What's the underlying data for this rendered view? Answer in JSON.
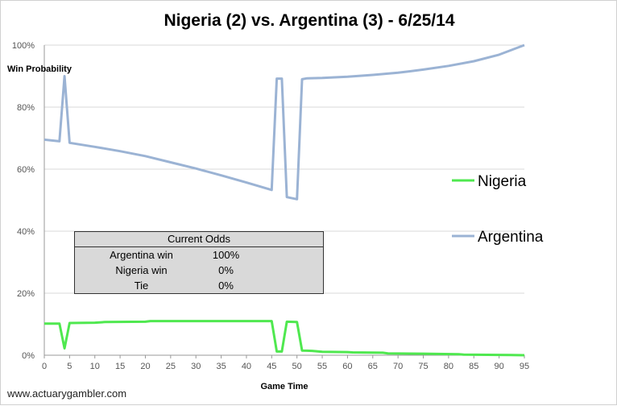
{
  "chart_data": {
    "type": "line",
    "title": "Nigeria (2) vs. Argentina (3) - 6/25/14",
    "xlabel": "Game Time",
    "ylabel": "Win Probability",
    "xlim": [
      0,
      95
    ],
    "ylim": [
      0,
      100
    ],
    "x_ticks": [
      "0",
      "5",
      "10",
      "15",
      "20",
      "25",
      "30",
      "35",
      "40",
      "45",
      "50",
      "55",
      "60",
      "65",
      "70",
      "75",
      "80",
      "85",
      "90",
      "95"
    ],
    "y_ticks": [
      "0%",
      "20%",
      "40%",
      "60%",
      "80%",
      "100%"
    ],
    "grid": true,
    "legend_position": "right",
    "series": [
      {
        "name": "Nigeria",
        "color": "#4fe84f",
        "points": [
          [
            0,
            10.2
          ],
          [
            3,
            10.2
          ],
          [
            4,
            2.2
          ],
          [
            5,
            10.4
          ],
          [
            10,
            10.5
          ],
          [
            12,
            10.7
          ],
          [
            20,
            10.8
          ],
          [
            21,
            11.0
          ],
          [
            45,
            11.0
          ],
          [
            46,
            1.2
          ],
          [
            47,
            1.2
          ],
          [
            48,
            10.8
          ],
          [
            50,
            10.7
          ],
          [
            51,
            1.5
          ],
          [
            53,
            1.4
          ],
          [
            55,
            1.1
          ],
          [
            60,
            1.0
          ],
          [
            61,
            0.9
          ],
          [
            67,
            0.8
          ],
          [
            68,
            0.6
          ],
          [
            75,
            0.5
          ],
          [
            82,
            0.3
          ],
          [
            83,
            0.2
          ],
          [
            90,
            0.1
          ],
          [
            95,
            0.0
          ]
        ]
      },
      {
        "name": "Argentina",
        "color": "#9bb3d4",
        "points": [
          [
            0,
            69.5
          ],
          [
            3,
            69.0
          ],
          [
            4,
            90.0
          ],
          [
            5,
            68.5
          ],
          [
            10,
            67.2
          ],
          [
            15,
            65.8
          ],
          [
            20,
            64.2
          ],
          [
            25,
            62.2
          ],
          [
            30,
            60.2
          ],
          [
            35,
            58.0
          ],
          [
            40,
            55.7
          ],
          [
            45,
            53.3
          ],
          [
            46,
            89.2
          ],
          [
            47,
            89.2
          ],
          [
            48,
            51.0
          ],
          [
            50,
            50.3
          ],
          [
            51,
            89.0
          ],
          [
            52,
            89.3
          ],
          [
            55,
            89.4
          ],
          [
            60,
            89.8
          ],
          [
            65,
            90.4
          ],
          [
            70,
            91.1
          ],
          [
            75,
            92.1
          ],
          [
            80,
            93.3
          ],
          [
            85,
            94.8
          ],
          [
            90,
            96.9
          ],
          [
            95,
            100.0
          ]
        ]
      }
    ]
  },
  "odds_table": {
    "header": "Current Odds",
    "rows": [
      {
        "label": "Argentina win",
        "value": "100%"
      },
      {
        "label": "Nigeria win",
        "value": "0%"
      },
      {
        "label": "Tie",
        "value": "0%"
      }
    ]
  },
  "footer": {
    "text": "www.actuarygambler.com"
  }
}
